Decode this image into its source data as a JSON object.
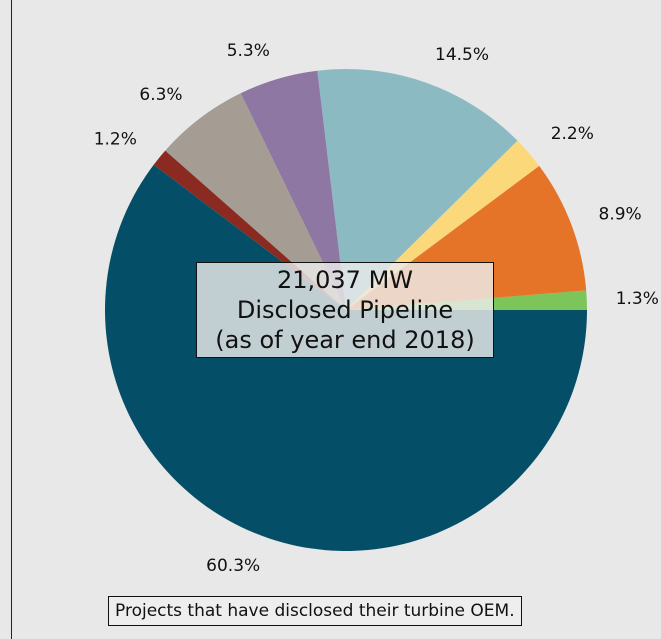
{
  "chart_data": {
    "type": "pie",
    "start_angle_deg": 0,
    "direction": "counterclockwise",
    "slices": [
      {
        "label": "1.3%",
        "value": 1.3,
        "color": "#7dc55a"
      },
      {
        "label": "8.9%",
        "value": 8.9,
        "color": "#e57428"
      },
      {
        "label": "2.2%",
        "value": 2.2,
        "color": "#fbd87a"
      },
      {
        "label": "14.5%",
        "value": 14.5,
        "color": "#8bbac2"
      },
      {
        "label": "5.3%",
        "value": 5.3,
        "color": "#8e77a3"
      },
      {
        "label": "6.3%",
        "value": 6.3,
        "color": "#a59c93"
      },
      {
        "label": "1.2%",
        "value": 1.2,
        "color": "#8b2a20"
      },
      {
        "label": "60.3%",
        "value": 60.3,
        "color": "#044f67"
      }
    ],
    "center_label": [
      "21,037 MW",
      "Disclosed Pipeline",
      "(as of year end 2018)"
    ],
    "footnote": "Projects that have disclosed their turbine OEM."
  }
}
